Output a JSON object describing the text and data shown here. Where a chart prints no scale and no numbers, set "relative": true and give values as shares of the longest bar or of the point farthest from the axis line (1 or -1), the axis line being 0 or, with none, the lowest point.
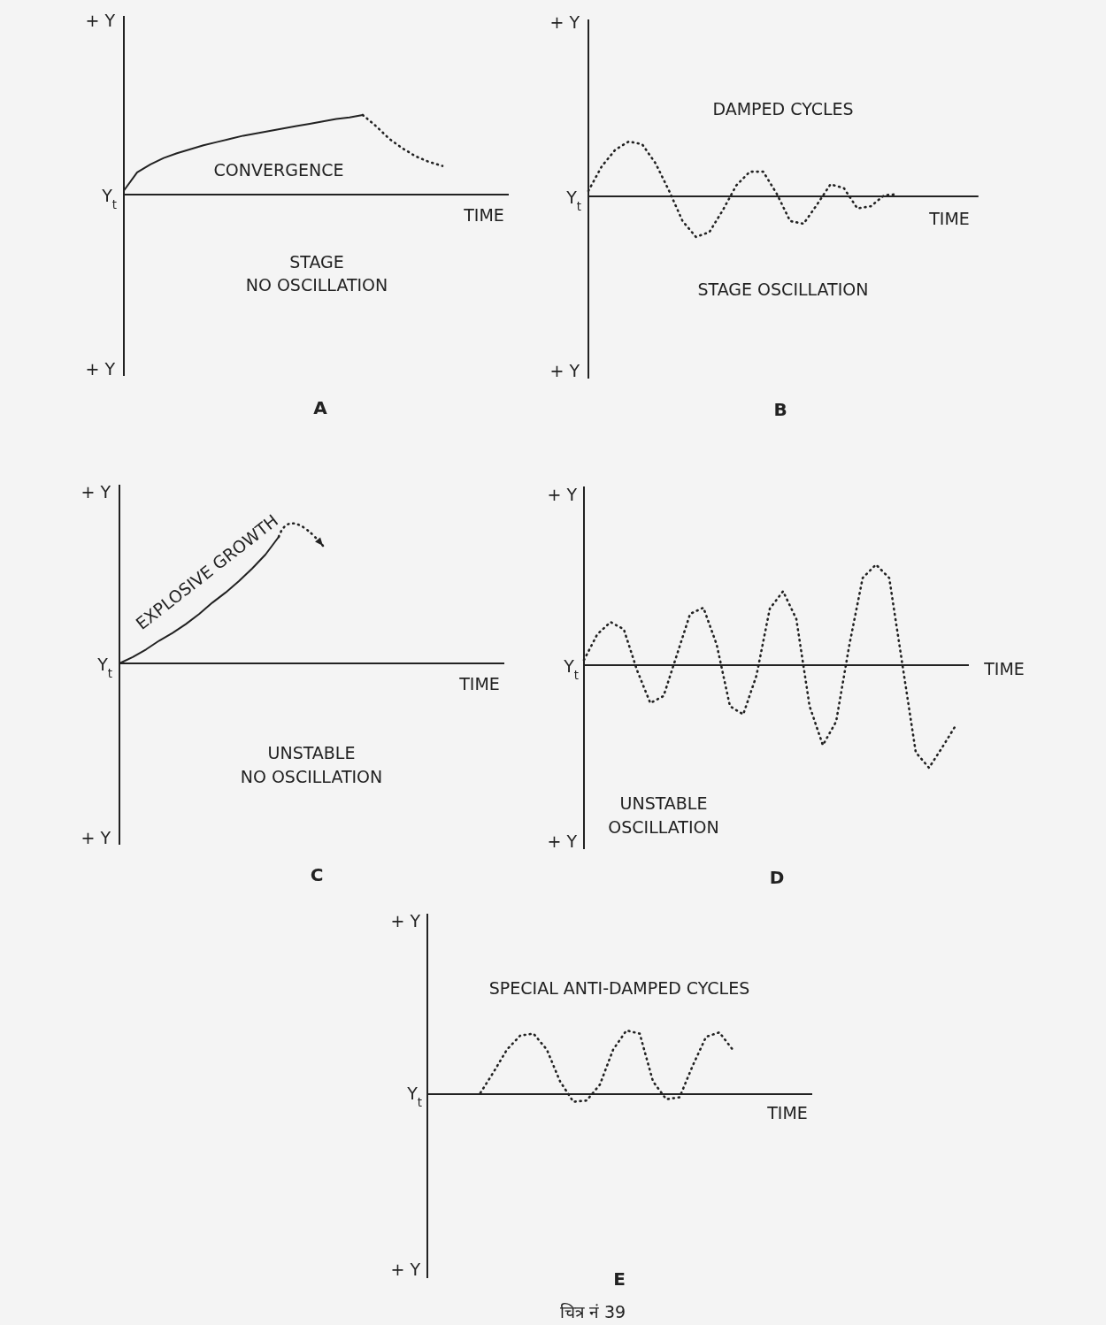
{
  "chart_data": [
    {
      "type": "line",
      "title": "A",
      "xlabel": "TIME",
      "relative": true,
      "annotations": [
        "+ Y",
        "Y$_{t}$",
        "CONVERGENCE",
        "STAGE",
        "NO OSCILLATION",
        "+ Y"
      ],
      "categories": [
        null,
        null,
        null,
        null,
        null,
        null,
        null,
        null,
        null,
        null,
        null,
        null,
        null,
        null,
        null,
        null,
        null,
        null,
        null,
        null,
        null,
        null,
        null,
        null,
        null,
        null,
        null,
        null,
        null,
        null
      ],
      "series": [
        {
          "color": "#222222",
          "line_style": "solid",
          "values": [
            0.05,
            0.28,
            0.38,
            0.46,
            0.52,
            0.57,
            0.62,
            0.66,
            0.7,
            0.74,
            0.77,
            0.8,
            0.83,
            0.86,
            0.89,
            0.92,
            0.95,
            0.97,
            1.0,
            null,
            null,
            null,
            null,
            null,
            null,
            null,
            null,
            null,
            null,
            null
          ]
        },
        {
          "color": "#222222",
          "line_style": "dotted",
          "values": [
            null,
            null,
            null,
            null,
            null,
            null,
            null,
            null,
            null,
            null,
            null,
            null,
            null,
            null,
            null,
            null,
            null,
            null,
            1.0,
            0.86,
            0.7,
            0.58,
            0.48,
            0.41,
            0.36,
            null,
            null,
            null,
            null,
            null
          ]
        }
      ]
    },
    {
      "type": "line",
      "title": "B",
      "xlabel": "TIME",
      "relative": true,
      "annotations": [
        "+ Y",
        "Y$_{t}$",
        "DAMPED CYCLES",
        "STAGE OSCILLATION",
        "+ Y"
      ],
      "categories": [
        null,
        null,
        null,
        null,
        null,
        null,
        null,
        null,
        null,
        null,
        null,
        null,
        null,
        null,
        null,
        null,
        null,
        null,
        null,
        null,
        null,
        null,
        null,
        null,
        null,
        null,
        null,
        null,
        null,
        null
      ],
      "series": [
        {
          "color": "#222222",
          "line_style": "dotted",
          "values": [
            0.1,
            0.55,
            0.85,
            1.0,
            0.95,
            0.6,
            0.1,
            -0.45,
            -0.74,
            -0.65,
            -0.25,
            0.2,
            0.45,
            0.45,
            0.05,
            -0.45,
            -0.5,
            -0.15,
            0.22,
            0.15,
            -0.22,
            -0.18,
            0.02,
            0.04,
            null,
            null,
            null,
            null,
            null,
            null
          ]
        }
      ]
    },
    {
      "type": "line",
      "title": "C",
      "xlabel": "TIME",
      "relative": true,
      "annotations": [
        "+ Y",
        "Y$_{t}$",
        "EXPLOSIVE GROWTH",
        "UNSTABLE",
        "NO OSCILLATION",
        "+ Y"
      ],
      "categories": [
        null,
        null,
        null,
        null,
        null,
        null,
        null,
        null,
        null,
        null,
        null,
        null,
        null,
        null,
        null,
        null,
        null,
        null,
        null,
        null,
        null,
        null,
        null,
        null,
        null,
        null,
        null,
        null,
        null,
        null
      ],
      "series": [
        {
          "color": "#222222",
          "line_style": "solid",
          "values": [
            0,
            0.05,
            0.11,
            0.18,
            0.24,
            0.31,
            0.39,
            0.48,
            0.56,
            0.65,
            0.75,
            0.86,
            1.0,
            null,
            null,
            null,
            null,
            null,
            null,
            null,
            null,
            null,
            null,
            null,
            null,
            null,
            null,
            null,
            null,
            null
          ]
        }
      ]
    },
    {
      "type": "line",
      "title": "D",
      "xlabel": "TIME",
      "relative": true,
      "annotations": [
        "+ Y",
        "Y$_{t}$",
        "UNSTABLE",
        "OSCILLATION",
        "+ Y"
      ],
      "categories": [
        null,
        null,
        null,
        null,
        null,
        null,
        null,
        null,
        null,
        null,
        null,
        null,
        null,
        null,
        null,
        null,
        null,
        null,
        null,
        null,
        null,
        null,
        null,
        null,
        null,
        null,
        null,
        null,
        null,
        null
      ],
      "series": [
        {
          "color": "#222222",
          "line_style": "dotted",
          "values": [
            0.05,
            0.3,
            0.42,
            0.35,
            -0.05,
            -0.37,
            -0.3,
            0.1,
            0.5,
            0.56,
            0.2,
            -0.4,
            -0.48,
            -0.1,
            0.55,
            0.72,
            0.45,
            -0.4,
            -0.78,
            -0.55,
            0.2,
            0.85,
            0.98,
            0.85,
            0.0,
            -0.85,
            -1.0,
            -0.8,
            -0.59,
            null
          ]
        }
      ]
    },
    {
      "type": "line",
      "title": "E",
      "xlabel": "TIME",
      "relative": true,
      "annotations": [
        "+ Y",
        "Y$_{t}$",
        "SPECIAL ANTI-DAMPED CYCLES",
        "+ Y",
        "चित्र नं 39"
      ],
      "categories": [
        null,
        null,
        null,
        null,
        null,
        null,
        null,
        null,
        null,
        null,
        null,
        null,
        null,
        null,
        null,
        null,
        null,
        null,
        null,
        null,
        null,
        null,
        null,
        null,
        null,
        null,
        null,
        null,
        null,
        null
      ],
      "series": [
        {
          "color": "#222222",
          "line_style": "dotted",
          "values": [
            null,
            null,
            null,
            null,
            0.02,
            0.35,
            0.7,
            0.92,
            0.95,
            0.7,
            0.2,
            -0.12,
            -0.1,
            0.15,
            0.7,
            1.0,
            0.95,
            0.2,
            -0.08,
            -0.05,
            0.45,
            0.9,
            0.97,
            0.7,
            null,
            null,
            null,
            null,
            null,
            null
          ]
        }
      ]
    }
  ]
}
